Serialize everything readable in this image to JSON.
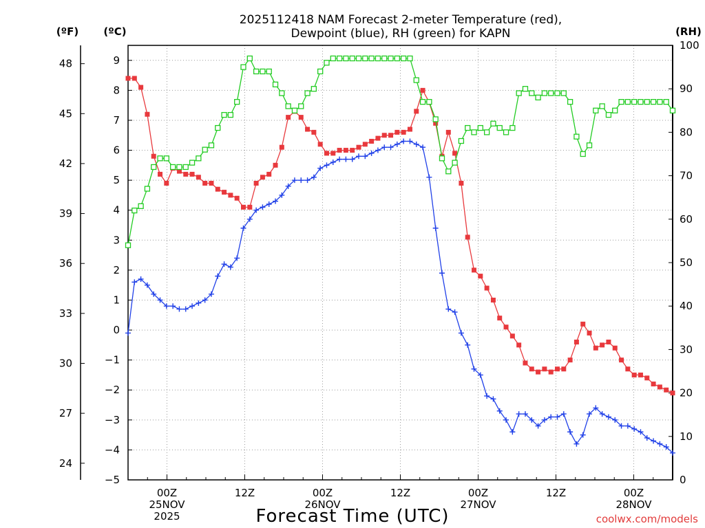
{
  "colors": {
    "temp": "#e8393d",
    "dewpoint": "#2040e8",
    "rh": "#22cc22",
    "credit": "#e23b3b"
  },
  "title_lines": [
    "2025112418 NAM Forecast 2-meter Temperature (red),",
    "Dewpoint (blue), RH (green) for KAPN"
  ],
  "unit_f": "(ºF)",
  "unit_c": "(ºC)",
  "unit_rh": "(RH)",
  "x_title": "Forecast Time (UTC)",
  "credit": "coolwx.com/models",
  "chart_data": {
    "type": "line",
    "title": "2025112418 NAM Forecast 2-meter Temperature (red), Dewpoint (blue), RH (green) for KAPN",
    "xlabel": "Forecast Time (UTC)",
    "x_unit": "forecast hour from 2025-11-24 18Z",
    "xlim": [
      0,
      84
    ],
    "ylim_c": [
      -5,
      9.5
    ],
    "ylim_f": [
      23,
      49.1
    ],
    "ylim_rh": [
      0,
      100
    ],
    "grid": true,
    "c_ticks": [
      -5,
      -4,
      -3,
      -2,
      -1,
      0,
      1,
      2,
      3,
      4,
      5,
      6,
      7,
      8,
      9
    ],
    "f_ticks": [
      24,
      27,
      30,
      33,
      36,
      39,
      42,
      45,
      48
    ],
    "rh_ticks": [
      0,
      10,
      20,
      30,
      40,
      50,
      60,
      70,
      80,
      90,
      100
    ],
    "x_ticks": [
      {
        "hour": 6,
        "lines": [
          "00Z",
          "25NOV",
          "2025"
        ]
      },
      {
        "hour": 18,
        "lines": [
          "12Z"
        ]
      },
      {
        "hour": 30,
        "lines": [
          "00Z",
          "26NOV"
        ]
      },
      {
        "hour": 42,
        "lines": [
          "12Z"
        ]
      },
      {
        "hour": 54,
        "lines": [
          "00Z",
          "27NOV"
        ]
      },
      {
        "hour": 66,
        "lines": [
          "12Z"
        ]
      },
      {
        "hour": 78,
        "lines": [
          "00Z",
          "28NOV"
        ]
      }
    ],
    "series": [
      {
        "key": "temp",
        "name": "Temperature",
        "axis": "c",
        "marker": "square",
        "values": [
          8.4,
          8.4,
          8.1,
          7.2,
          5.8,
          5.2,
          4.9,
          5.4,
          5.3,
          5.2,
          5.2,
          5.1,
          4.9,
          4.9,
          4.7,
          4.6,
          4.5,
          4.4,
          4.1,
          4.1,
          4.9,
          5.1,
          5.2,
          5.5,
          6.1,
          7.1,
          7.3,
          7.1,
          6.7,
          6.6,
          6.2,
          5.9,
          5.9,
          6.0,
          6.0,
          6.0,
          6.1,
          6.2,
          6.3,
          6.4,
          6.5,
          6.5,
          6.6,
          6.6,
          6.7,
          7.3,
          8.0,
          7.6,
          6.9,
          5.8,
          6.6,
          5.9,
          4.9,
          3.1,
          2.0,
          1.8,
          1.4,
          1.0,
          0.4,
          0.1,
          -0.2,
          -0.5,
          -1.1,
          -1.3,
          -1.4,
          -1.3,
          -1.4,
          -1.3,
          -1.3,
          -1.0,
          -0.4,
          0.2,
          -0.1,
          -0.6,
          -0.5,
          -0.4,
          -0.6,
          -1.0,
          -1.3,
          -1.5,
          -1.5,
          -1.6,
          -1.8,
          -1.9,
          -2.0,
          -2.1
        ]
      },
      {
        "key": "dewpoint",
        "name": "Dewpoint",
        "axis": "c",
        "marker": "plus",
        "values": [
          -0.1,
          1.6,
          1.7,
          1.5,
          1.2,
          1.0,
          0.8,
          0.8,
          0.7,
          0.7,
          0.8,
          0.9,
          1.0,
          1.2,
          1.8,
          2.2,
          2.1,
          2.4,
          3.4,
          3.7,
          4.0,
          4.1,
          4.2,
          4.3,
          4.5,
          4.8,
          5.0,
          5.0,
          5.0,
          5.1,
          5.4,
          5.5,
          5.6,
          5.7,
          5.7,
          5.7,
          5.8,
          5.8,
          5.9,
          6.0,
          6.1,
          6.1,
          6.2,
          6.3,
          6.3,
          6.2,
          6.1,
          5.1,
          3.4,
          1.9,
          0.7,
          0.6,
          -0.1,
          -0.5,
          -1.3,
          -1.5,
          -2.2,
          -2.3,
          -2.7,
          -3.0,
          -3.4,
          -2.8,
          -2.8,
          -3.0,
          -3.2,
          -3.0,
          -2.9,
          -2.9,
          -2.8,
          -3.4,
          -3.8,
          -3.5,
          -2.8,
          -2.6,
          -2.8,
          -2.9,
          -3.0,
          -3.2,
          -3.2,
          -3.3,
          -3.4,
          -3.6,
          -3.7,
          -3.8,
          -3.9,
          -4.1
        ]
      },
      {
        "key": "rh",
        "name": "RH",
        "axis": "rh",
        "marker": "open-square",
        "values": [
          54,
          62,
          63,
          67,
          72,
          74,
          74,
          72,
          72,
          72,
          73,
          74,
          76,
          77,
          81,
          84,
          84,
          87,
          95,
          97,
          94,
          94,
          94,
          91,
          89,
          86,
          85,
          86,
          89,
          90,
          94,
          96,
          97,
          97,
          97,
          97,
          97,
          97,
          97,
          97,
          97,
          97,
          97,
          97,
          97,
          92,
          87,
          87,
          83,
          74,
          71,
          73,
          78,
          81,
          80,
          81,
          80,
          82,
          81,
          80,
          81,
          89,
          90,
          89,
          88,
          89,
          89,
          89,
          89,
          87,
          79,
          75,
          77,
          85,
          86,
          84,
          85,
          87,
          87,
          87,
          87,
          87,
          87,
          87,
          87,
          85
        ]
      }
    ]
  }
}
